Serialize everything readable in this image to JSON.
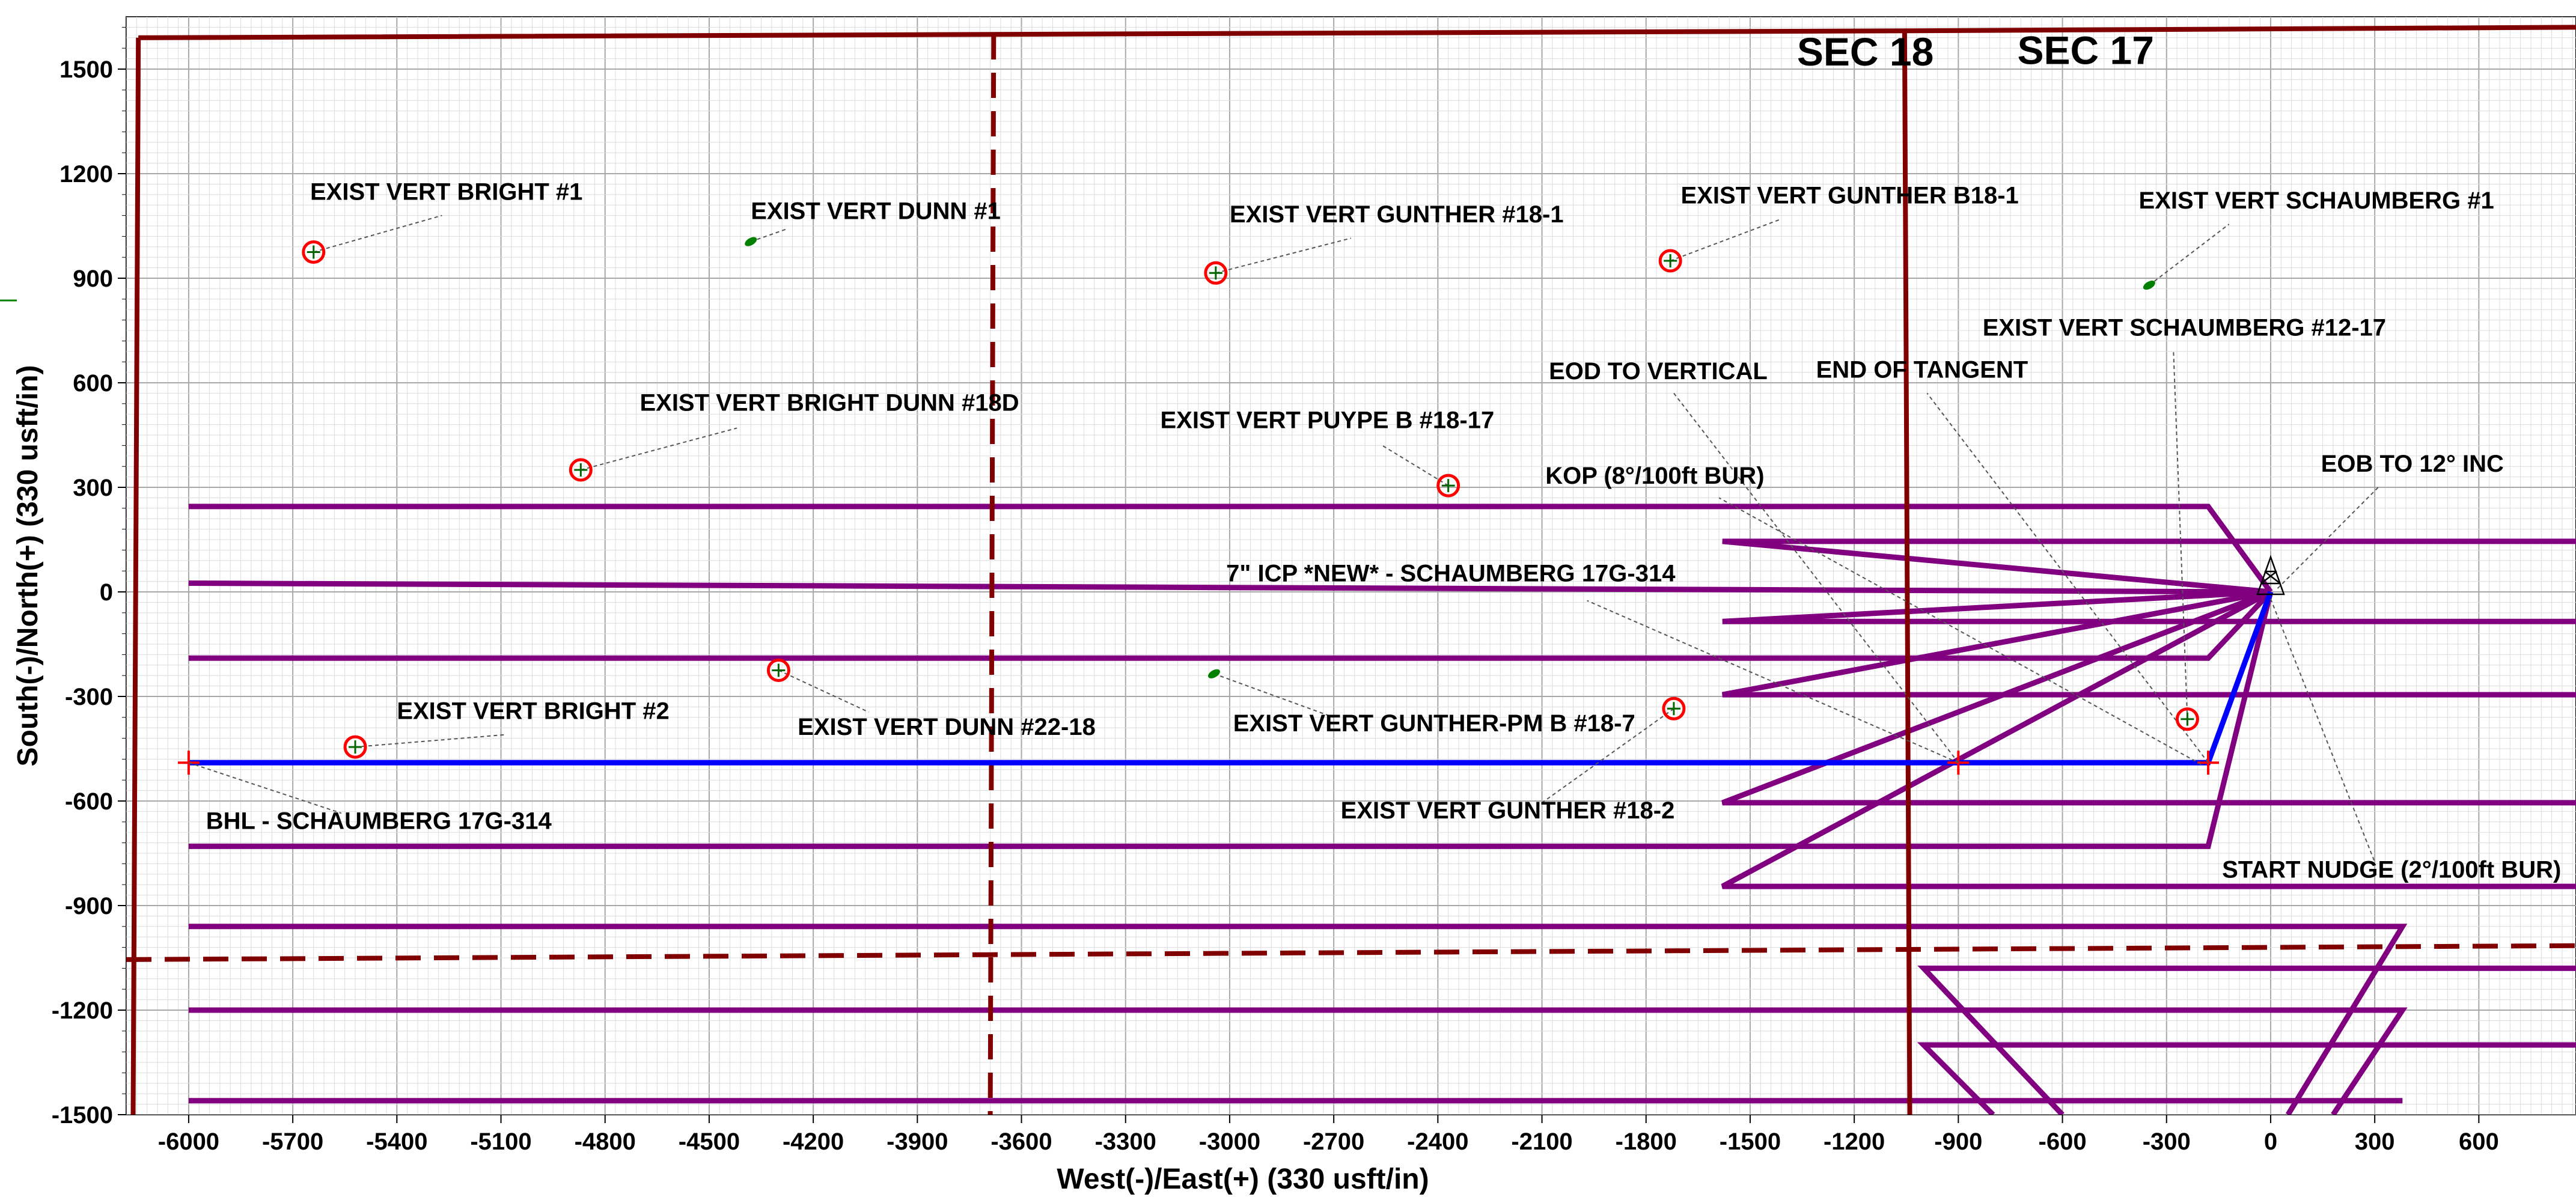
{
  "chart_data": {
    "type": "line",
    "title": "",
    "xlabel": "West(-)/East(+) (330 usft/in)",
    "ylabel": "South(-)/North(+) (330 usft/in)",
    "xlim": [
      -6180,
      880
    ],
    "ylim": [
      -1500,
      1650
    ],
    "xticks": [
      -6000,
      -5700,
      -5400,
      -5100,
      -4800,
      -4500,
      -4200,
      -3900,
      -3600,
      -3300,
      -3000,
      -2700,
      -2400,
      -2100,
      -1800,
      -1500,
      -1200,
      -900,
      -600,
      -300,
      0,
      300,
      600
    ],
    "yticks": [
      1500,
      1200,
      900,
      600,
      300,
      0,
      -300,
      -600,
      -900,
      -1200,
      -1500
    ],
    "grid": true,
    "colors": {
      "lease_line": "#800000",
      "offset_wells": "#800080",
      "plan": "#0000ff",
      "marker_red": "#ff0000",
      "vertical_green": "#008000"
    },
    "section_labels": [
      {
        "text": "SEC 18",
        "x": -1365,
        "y": 1510
      },
      {
        "text": "SEC 17",
        "x": -730,
        "y": 1515
      }
    ],
    "lease_lines": [
      {
        "style": "solid",
        "points": [
          [
            -6145,
            1590
          ],
          [
            -1030,
            1610
          ],
          [
            880,
            1620
          ]
        ]
      },
      {
        "style": "solid",
        "points": [
          [
            -6145,
            1590
          ],
          [
            -6160,
            -1500
          ]
        ]
      },
      {
        "style": "solid",
        "points": [
          [
            -1055,
            1605
          ],
          [
            -1040,
            -1500
          ]
        ]
      },
      {
        "style": "dashed",
        "points": [
          [
            -3680,
            1600
          ],
          [
            -3690,
            -1500
          ]
        ]
      },
      {
        "style": "dashed",
        "points": [
          [
            -6180,
            -1055
          ],
          [
            880,
            -1015
          ]
        ]
      }
    ],
    "offset_wells": [
      {
        "points": [
          [
            -6000,
            245
          ],
          [
            -180,
            245
          ],
          [
            0,
            0
          ]
        ]
      },
      {
        "points": [
          [
            -6000,
            25
          ],
          [
            0,
            0
          ]
        ]
      },
      {
        "points": [
          [
            -6000,
            -190
          ],
          [
            -180,
            -190
          ],
          [
            0,
            0
          ]
        ]
      },
      {
        "points": [
          [
            -6000,
            -730
          ],
          [
            -180,
            -730
          ],
          [
            0,
            0
          ]
        ]
      },
      {
        "points": [
          [
            880,
            145
          ],
          [
            -1580,
            145
          ],
          [
            0,
            0
          ]
        ]
      },
      {
        "points": [
          [
            880,
            -85
          ],
          [
            -1580,
            -85
          ],
          [
            0,
            0
          ]
        ]
      },
      {
        "points": [
          [
            880,
            -295
          ],
          [
            -1580,
            -295
          ],
          [
            0,
            0
          ]
        ]
      },
      {
        "points": [
          [
            880,
            -605
          ],
          [
            -1580,
            -605
          ],
          [
            0,
            0
          ]
        ]
      },
      {
        "points": [
          [
            880,
            -845
          ],
          [
            -1580,
            -845
          ],
          [
            0,
            0
          ]
        ]
      },
      {
        "points": [
          [
            -6000,
            -960
          ],
          [
            380,
            -960
          ],
          [
            50,
            -1500
          ]
        ]
      },
      {
        "points": [
          [
            -6000,
            -1200
          ],
          [
            380,
            -1200
          ],
          [
            180,
            -1500
          ]
        ]
      },
      {
        "points": [
          [
            -6000,
            -1460
          ],
          [
            380,
            -1460
          ]
        ]
      },
      {
        "points": [
          [
            880,
            -1080
          ],
          [
            -1000,
            -1080
          ],
          [
            -600,
            -1500
          ]
        ]
      },
      {
        "points": [
          [
            880,
            -1300
          ],
          [
            -1000,
            -1300
          ],
          [
            -800,
            -1500
          ]
        ]
      }
    ],
    "plan_well": {
      "name": "SCHAUMBERG 17G-314",
      "points": [
        [
          -6000,
          -490
        ],
        [
          -180,
          -490
        ],
        [
          0,
          0
        ]
      ]
    },
    "plan_markers": [
      [
        -6000,
        -490
      ],
      [
        -900,
        -490
      ],
      [
        -180,
        -490
      ]
    ],
    "rig": {
      "x": 0,
      "y": 0
    },
    "offset_markers": [
      {
        "type": "red",
        "x": -5640,
        "y": 975
      },
      {
        "type": "green",
        "x": -4380,
        "y": 1005
      },
      {
        "type": "red",
        "x": -3040,
        "y": 915
      },
      {
        "type": "red",
        "x": -1730,
        "y": 950
      },
      {
        "type": "green",
        "x": -350,
        "y": 880
      },
      {
        "type": "red",
        "x": -4870,
        "y": 350
      },
      {
        "type": "red",
        "x": -2370,
        "y": 305
      },
      {
        "type": "red",
        "x": -4300,
        "y": -225
      },
      {
        "type": "green",
        "x": -3045,
        "y": -235
      },
      {
        "type": "red",
        "x": -5520,
        "y": -445
      },
      {
        "type": "red",
        "x": -1720,
        "y": -335
      },
      {
        "type": "red",
        "x": -240,
        "y": -365
      }
    ],
    "annotations": [
      {
        "text": "EXIST VERT BRIGHT #1",
        "tx": -5650,
        "ty": 1125,
        "lx": -5640,
        "ly": 975,
        "ax": -5270,
        "ay": 1080
      },
      {
        "text": "EXIST VERT DUNN #1",
        "tx": -4380,
        "ty": 1070,
        "lx": -4380,
        "ly": 1005,
        "ax": -4280,
        "ay": 1040
      },
      {
        "text": "EXIST VERT GUNTHER #18-1",
        "tx": -3000,
        "ty": 1060,
        "lx": -3040,
        "ly": 915,
        "ax": -2650,
        "ay": 1015
      },
      {
        "text": "EXIST VERT GUNTHER B18-1",
        "tx": -1700,
        "ty": 1115,
        "lx": -1730,
        "ly": 950,
        "ax": -1410,
        "ay": 1070
      },
      {
        "text": "EXIST VERT SCHAUMBERG #1",
        "tx": -380,
        "ty": 1100,
        "lx": -350,
        "ly": 880,
        "ax": -120,
        "ay": 1055
      },
      {
        "text": "EXIST VERT SCHAUMBERG #12-17",
        "tx": -830,
        "ty": 735,
        "lx": -240,
        "ly": -365,
        "ax": -280,
        "ay": 690
      },
      {
        "text": "EOD TO VERTICAL",
        "tx": -2080,
        "ty": 610,
        "lx": -900,
        "ly": -490,
        "ax": -1720,
        "ay": 570
      },
      {
        "text": "END OF TANGENT",
        "tx": -1310,
        "ty": 615,
        "lx": -180,
        "ly": -490,
        "ax": -990,
        "ay": 570
      },
      {
        "text": "EXIST VERT BRIGHT DUNN #18D",
        "tx": -4700,
        "ty": 520,
        "lx": -4870,
        "ly": 350,
        "ax": -4420,
        "ay": 470
      },
      {
        "text": "EXIST VERT PUYPE B #18-17",
        "tx": -3200,
        "ty": 470,
        "lx": -2370,
        "ly": 305,
        "ax": -2560,
        "ay": 420
      },
      {
        "text": "EOB TO 12° INC",
        "tx": 145,
        "ty": 345,
        "lx": 20,
        "ly": 10,
        "ax": 310,
        "ay": 300
      },
      {
        "text": "KOP (8°/100ft BUR)",
        "tx": -2090,
        "ty": 310,
        "lx": -200,
        "ly": -495,
        "ax": -1590,
        "ay": 270
      },
      {
        "text": "7\" ICP *NEW* - SCHAUMBERG 17G-314",
        "tx": -3010,
        "ty": 30,
        "lx": -900,
        "ly": -490,
        "ax": -1970,
        "ay": -25
      },
      {
        "text": "EXIST VERT BRIGHT #2",
        "tx": -5400,
        "ty": -365,
        "lx": -5520,
        "ly": -445,
        "ax": -5090,
        "ay": -410
      },
      {
        "text": "EXIST VERT DUNN #22-18",
        "tx": -4245,
        "ty": -410,
        "lx": -4300,
        "ly": -225,
        "ax": -4040,
        "ay": -345
      },
      {
        "text": "EXIST VERT GUNTHER-PM B #18-7",
        "tx": -2990,
        "ty": -400,
        "lx": -3045,
        "ly": -235,
        "ax": -2700,
        "ay": -360
      },
      {
        "text": "EXIST VERT GUNTHER #18-2",
        "tx": -2680,
        "ty": -650,
        "lx": -1720,
        "ly": -335,
        "ax": -2100,
        "ay": -605
      },
      {
        "text": "BHL - SCHAUMBERG 17G-314",
        "tx": -5950,
        "ty": -680,
        "lx": -6000,
        "ly": -490,
        "ax": -5560,
        "ay": -635
      },
      {
        "text": "START NUDGE (2°/100ft BUR)",
        "tx": -140,
        "ty": -820,
        "lx": 0,
        "ly": -20,
        "ax": 300,
        "ay": -775
      }
    ]
  }
}
